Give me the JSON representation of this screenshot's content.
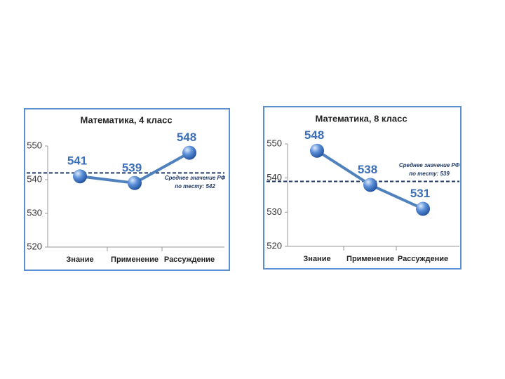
{
  "chart_data": [
    {
      "type": "line",
      "title": "Математика, 4 класс",
      "categories": [
        "Знание",
        "Применение",
        "Рассуждение"
      ],
      "series": [
        {
          "color": "#4f81bd",
          "values": [
            541,
            539,
            548
          ]
        }
      ],
      "ylim": [
        520,
        550
      ],
      "yticks": [
        520,
        530,
        540,
        550
      ],
      "reference_line": {
        "value": 542,
        "color": "#1f3864",
        "annotation": [
          "Среднее значение РФ",
          "по тесту: 542"
        ]
      }
    },
    {
      "type": "line",
      "title": "Математика, 8 класс",
      "categories": [
        "Знание",
        "Применение",
        "Рассуждение"
      ],
      "series": [
        {
          "color": "#4f81bd",
          "values": [
            548,
            538,
            531
          ]
        }
      ],
      "ylim": [
        520,
        550
      ],
      "yticks": [
        520,
        530,
        540,
        550
      ],
      "reference_line": {
        "value": 539,
        "color": "#1f3864",
        "annotation": [
          "Среднее значение РФ",
          "по тесту: 539"
        ]
      }
    }
  ]
}
